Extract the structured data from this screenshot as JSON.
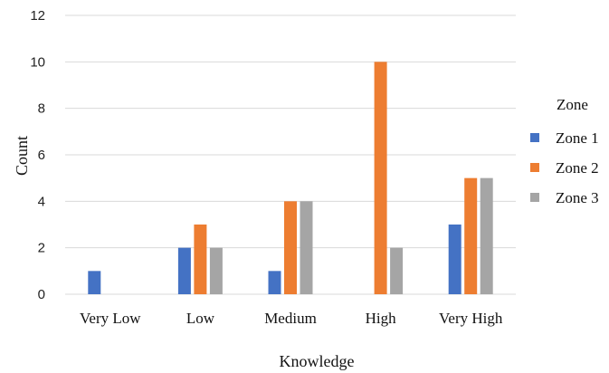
{
  "chart_data": {
    "type": "bar",
    "title": "",
    "xlabel": "Knowledge",
    "ylabel": "Count",
    "ylim": [
      0,
      12
    ],
    "yticks": [
      0,
      2,
      4,
      6,
      8,
      10,
      12
    ],
    "grid": true,
    "legend": {
      "title": "Zone",
      "placement": "right"
    },
    "categories": [
      "Very Low",
      "Low",
      "Medium",
      "High",
      "Very High"
    ],
    "series": [
      {
        "name": "Zone 1",
        "color": "#4472C4",
        "values": [
          1,
          2,
          1,
          0,
          3
        ]
      },
      {
        "name": "Zone 2",
        "color": "#ED7D31",
        "values": [
          0,
          3,
          4,
          10,
          5
        ]
      },
      {
        "name": "Zone 3",
        "color": "#A5A5A5",
        "values": [
          0,
          2,
          4,
          2,
          5
        ]
      }
    ]
  }
}
